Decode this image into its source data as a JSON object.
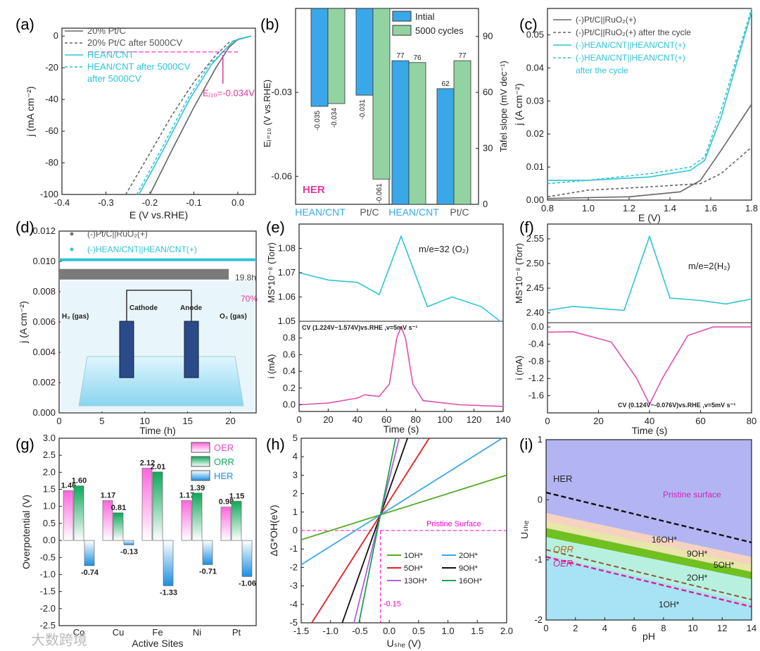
{
  "colors": {
    "cyan": "#2ec4d6",
    "gray": "#666666",
    "pink": "#e0379b",
    "magenta": "#ff00cc",
    "blue": "#3aa8e8",
    "green": "#8fd4a0",
    "olive": "#5a7a20"
  },
  "panels": {
    "a": {
      "label": "(a)",
      "xlabel": "E (V vs.RHE)",
      "ylabel": "j (mA cm⁻²)",
      "xticks": [
        "-0.4",
        "-0.3",
        "-0.2",
        "-0.1",
        "0.0"
      ],
      "yticks": [
        "0",
        "-20",
        "-40",
        "-60",
        "-80",
        "-100"
      ],
      "legend": [
        "20% Pt/C",
        "20% Pt/C after 5000CV",
        "HEAN/CNT",
        "HEAN/CNT after 5000CV"
      ],
      "annotation": "Eⱼ₁₀=-0.034V"
    },
    "b": {
      "label": "(b)",
      "ylabel_left": "Eⱼ₌₁₀ (V vs.RHE)",
      "ylabel_right": "Tafel slope (mV dec⁻¹)",
      "yticks_left": [
        "-0.03",
        "-0.06"
      ],
      "yticks_right": [
        "90",
        "60",
        "30",
        "0"
      ],
      "legend": [
        "Intial",
        "5000 cycles"
      ],
      "tag": "HER",
      "xcats": [
        "HEAN/CNT",
        "Pt/C",
        "HEAN/CNT",
        "Pt/C"
      ],
      "labels_left": [
        "-0.035",
        "-0.034",
        "-0.031",
        "-0.061"
      ],
      "labels_right": [
        "77",
        "76",
        "62",
        "77"
      ]
    },
    "c": {
      "label": "(c)",
      "xlabel": "E (V)",
      "ylabel": "j (A cm⁻²)",
      "xticks": [
        "0.8",
        "1.0",
        "1.2",
        "1.4",
        "1.6",
        "1.8"
      ],
      "yticks": [
        "0.00",
        "0.01",
        "0.02",
        "0.03",
        "0.04",
        "0.05"
      ],
      "legend": [
        "(-)Pt/C||RuO₂(+)",
        "(-)Pt/C||RuO₂(+) after the cycle",
        "(-)HEAN/CNT||HEAN/CNT(+)",
        "(-)HEAN/CNT||HEAN/CNT(+)",
        "after the cycle"
      ]
    },
    "d": {
      "label": "(d)",
      "xlabel": "Time (h)",
      "ylabel": "j (A cm⁻²)",
      "xticks": [
        "0",
        "5",
        "10",
        "15",
        "20"
      ],
      "yticks": [
        "0.000",
        "0.002",
        "0.004",
        "0.006",
        "0.008",
        "0.010",
        "0.012"
      ],
      "legend": [
        "(-)Pt/C||RuO₂(+)",
        "(-)HEAN/CNT||HEAN/CNT(+)"
      ],
      "ann1": "19.8h",
      "ann2": "70%",
      "cathode": "Cathode",
      "anode": "Anode",
      "h2": "H₂ (gas)",
      "o2": "O₂ (gas)"
    },
    "e": {
      "label": "(e)",
      "xlabel": "Time (s)",
      "ylabel_top": "MS*10⁻⁸ (Torr)",
      "ylabel_bottom": "i (mA)",
      "xticks": [
        "0",
        "20",
        "40",
        "60",
        "80",
        "100",
        "120",
        "140"
      ],
      "yticks_top": [
        "1.08",
        "1.07",
        "1.06",
        "1.05"
      ],
      "yticks_bottom": [
        "0.8",
        "0.6",
        "0.4",
        "0.2",
        "0.0"
      ],
      "me": "m/e=32 (O₂)",
      "cv": "CV (1.224V~1.574V)vs.RHE ,v=5mV s⁻¹"
    },
    "f": {
      "label": "(f)",
      "xlabel": "Time (s)",
      "ylabel_top": "MS*10⁻⁸ (Torr)",
      "ylabel_bottom": "i (mA)",
      "xticks": [
        "0",
        "20",
        "40",
        "60",
        "80"
      ],
      "yticks_top": [
        "2.55",
        "2.50",
        "2.45",
        "2.40"
      ],
      "yticks_bottom": [
        "0.0",
        "-0.4",
        "-0.8",
        "-1.2",
        "-1.6"
      ],
      "me": "m/e=2(H₂)",
      "cv": "CV (0.124V~-0.076V)vs.RHE ,v=5mV s⁻¹"
    },
    "g": {
      "label": "(g)",
      "xlabel": "Active Sites",
      "ylabel": "Overpotential (V)",
      "yticks": [
        "3.0",
        "2.5",
        "2.0",
        "1.5",
        "1.0",
        "0.5",
        "0.0",
        "-0.5",
        "-1.0",
        "-1.5",
        "-2.0",
        "-2.5"
      ],
      "legend": [
        "OER",
        "ORR",
        "HER"
      ],
      "xcats": [
        "Co",
        "Cu",
        "Fe",
        "Ni",
        "Pt"
      ]
    },
    "h": {
      "label": "(h)",
      "xlabel": "Uₛₕₑ (V)",
      "ylabel": "ΔG*OH(eV)",
      "xticks": [
        "-1.5",
        "-1.0",
        "-0.5",
        "0.0",
        "0.5",
        "1.0",
        "1.5",
        "2.0"
      ],
      "yticks": [
        "5",
        "4",
        "3",
        "2",
        "1",
        "0",
        "-1",
        "-2",
        "-3",
        "-4",
        "-5"
      ],
      "pristine": "Pristine Surface",
      "val": "-0.15",
      "legend": [
        "1OH*",
        "2OH*",
        "5OH*",
        "9OH*",
        "13OH*",
        "16OH*"
      ]
    },
    "i": {
      "label": "(i)",
      "xlabel": "pH",
      "ylabel": "Uₛₕₑ",
      "xticks": [
        "0",
        "2",
        "4",
        "6",
        "8",
        "10",
        "12",
        "14"
      ],
      "yticks": [
        "1",
        "0",
        "-1",
        "-2"
      ],
      "her": "HER",
      "orr": "ORR",
      "oer": "OER",
      "pristine": "Pristine surface",
      "regions": [
        "16OH*",
        "9OH*",
        "5OH*",
        "2OH*",
        "1OH*"
      ]
    },
    "watermark": "大数跨境"
  },
  "chart_data": [
    {
      "type": "line",
      "panel": "a",
      "xlim": [
        -0.4,
        0.04
      ],
      "ylim": [
        -100,
        5
      ],
      "series": [
        {
          "name": "20% Pt/C",
          "style": "solid",
          "color": "#666666",
          "points": [
            [
              -0.2,
              -100
            ],
            [
              -0.15,
              -72
            ],
            [
              -0.1,
              -45
            ],
            [
              -0.05,
              -20
            ],
            [
              -0.02,
              -7
            ],
            [
              0.0,
              -2
            ],
            [
              0.03,
              0
            ]
          ]
        },
        {
          "name": "20% Pt/C after 5000CV",
          "style": "dashed",
          "color": "#666666",
          "points": [
            [
              -0.255,
              -100
            ],
            [
              -0.2,
              -74
            ],
            [
              -0.15,
              -50
            ],
            [
              -0.1,
              -29
            ],
            [
              -0.05,
              -12
            ],
            [
              -0.02,
              -4
            ],
            [
              0.03,
              0
            ]
          ]
        },
        {
          "name": "HEAN/CNT",
          "style": "solid",
          "color": "#2ec4d6",
          "points": [
            [
              -0.225,
              -100
            ],
            [
              -0.17,
              -72
            ],
            [
              -0.11,
              -40
            ],
            [
              -0.06,
              -18
            ],
            [
              -0.034,
              -10
            ],
            [
              -0.01,
              -3
            ],
            [
              0.03,
              0
            ]
          ]
        },
        {
          "name": "HEAN/CNT after 5000CV",
          "style": "dashed",
          "color": "#2ec4d6",
          "points": [
            [
              -0.23,
              -100
            ],
            [
              -0.175,
              -72
            ],
            [
              -0.115,
              -40
            ],
            [
              -0.065,
              -18
            ],
            [
              -0.034,
              -10
            ],
            [
              -0.01,
              -3
            ],
            [
              0.03,
              0
            ]
          ]
        }
      ]
    },
    {
      "type": "bar",
      "panel": "b",
      "categories": [
        "HEAN/CNT",
        "Pt/C",
        "HEAN/CNT",
        "Pt/C"
      ],
      "series": [
        {
          "name": "Intial",
          "values": [
            -0.035,
            -0.031,
            77,
            62
          ]
        },
        {
          "name": "5000 cycles",
          "values": [
            -0.034,
            -0.061,
            76,
            77
          ]
        }
      ],
      "ylim_left": [
        -0.07,
        0
      ],
      "ylim_right": [
        0,
        105
      ]
    },
    {
      "type": "line",
      "panel": "c",
      "xlim": [
        0.8,
        1.8
      ],
      "ylim": [
        0,
        0.058
      ],
      "series": [
        {
          "name": "(-)Pt/C||RuO2(+)",
          "style": "solid",
          "color": "#666666",
          "points": [
            [
              0.8,
              0.0005
            ],
            [
              1.2,
              0.001
            ],
            [
              1.45,
              0.0025
            ],
            [
              1.55,
              0.006
            ],
            [
              1.65,
              0.015
            ],
            [
              1.8,
              0.029
            ]
          ]
        },
        {
          "name": "(-)Pt/C||RuO2(+) after the cycle",
          "style": "dashed",
          "color": "#666666",
          "points": [
            [
              0.8,
              0.001
            ],
            [
              1.0,
              0.003
            ],
            [
              1.3,
              0.004
            ],
            [
              1.55,
              0.005
            ],
            [
              1.65,
              0.008
            ],
            [
              1.8,
              0.016
            ]
          ]
        },
        {
          "name": "(-)HEAN/CNT||HEAN/CNT(+)",
          "style": "solid",
          "color": "#2ec4d6",
          "points": [
            [
              0.8,
              0.006
            ],
            [
              1.0,
              0.006
            ],
            [
              1.3,
              0.007
            ],
            [
              1.5,
              0.009
            ],
            [
              1.57,
              0.012
            ],
            [
              1.65,
              0.025
            ],
            [
              1.8,
              0.057
            ]
          ]
        },
        {
          "name": "(-)HEAN/CNT||HEAN/CNT(+) after the cycle",
          "style": "dashed",
          "color": "#2ec4d6",
          "points": [
            [
              0.8,
              0.005
            ],
            [
              1.0,
              0.006
            ],
            [
              1.3,
              0.008
            ],
            [
              1.5,
              0.01
            ],
            [
              1.57,
              0.013
            ],
            [
              1.65,
              0.027
            ],
            [
              1.8,
              0.058
            ]
          ]
        }
      ]
    },
    {
      "type": "line",
      "panel": "d",
      "xlim": [
        0,
        23
      ],
      "ylim": [
        0,
        0.012
      ],
      "series": [
        {
          "name": "(-)Pt/C||RuO2(+)",
          "color": "#777777",
          "points": [
            [
              0,
              0.0093
            ],
            [
              5,
              0.0092
            ],
            [
              10,
              0.0091
            ],
            [
              15,
              0.009
            ],
            [
              19.8,
              0.0089
            ],
            [
              20.3,
              0.0075
            ],
            [
              21,
              0.0072
            ]
          ]
        },
        {
          "name": "(-)HEAN/CNT||HEAN/CNT(+)",
          "color": "#2ec4d6",
          "points": [
            [
              0,
              0.0101
            ],
            [
              23,
              0.0101
            ]
          ]
        }
      ]
    },
    {
      "type": "line",
      "panel": "e",
      "xlim": [
        0,
        140
      ],
      "top": {
        "ylim": [
          1.05,
          1.09
        ],
        "points": [
          [
            0,
            1.07
          ],
          [
            20,
            1.067
          ],
          [
            40,
            1.066
          ],
          [
            55,
            1.061
          ],
          [
            70,
            1.085
          ],
          [
            88,
            1.056
          ],
          [
            105,
            1.06
          ],
          [
            125,
            1.056
          ],
          [
            138,
            1.05
          ]
        ]
      },
      "bottom": {
        "ylim": [
          -0.08,
          1.0
        ],
        "points": [
          [
            0,
            0
          ],
          [
            20,
            0.02
          ],
          [
            40,
            0.08
          ],
          [
            45,
            0.12
          ],
          [
            55,
            0.1
          ],
          [
            62,
            0.25
          ],
          [
            67,
            0.8
          ],
          [
            70,
            0.93
          ],
          [
            73,
            0.8
          ],
          [
            78,
            0.25
          ],
          [
            85,
            0.05
          ],
          [
            110,
            0
          ],
          [
            140,
            -0.02
          ]
        ]
      }
    },
    {
      "type": "line",
      "panel": "f",
      "xlim": [
        0,
        80
      ],
      "top": {
        "ylim": [
          2.38,
          2.58
        ],
        "points": [
          [
            0,
            2.405
          ],
          [
            10,
            2.413
          ],
          [
            30,
            2.405
          ],
          [
            40,
            2.555
          ],
          [
            48,
            2.43
          ],
          [
            60,
            2.425
          ],
          [
            70,
            2.418
          ],
          [
            80,
            2.428
          ]
        ]
      },
      "bottom": {
        "ylim": [
          -2.0,
          0.1
        ],
        "points": [
          [
            0,
            -0.12
          ],
          [
            10,
            -0.11
          ],
          [
            25,
            -0.35
          ],
          [
            35,
            -1.2
          ],
          [
            40,
            -1.8
          ],
          [
            45,
            -1.2
          ],
          [
            55,
            -0.2
          ],
          [
            65,
            0.0
          ],
          [
            80,
            0.0
          ]
        ]
      }
    },
    {
      "type": "bar",
      "panel": "g",
      "categories": [
        "Co",
        "Cu",
        "Fe",
        "Ni",
        "Pt"
      ],
      "ylim": [
        -2.5,
        3.0
      ],
      "series": [
        {
          "name": "OER",
          "values": [
            1.46,
            1.17,
            2.12,
            1.17,
            0.98
          ]
        },
        {
          "name": "ORR",
          "values": [
            1.6,
            0.81,
            2.01,
            1.39,
            1.15
          ]
        },
        {
          "name": "HER",
          "values": [
            -0.74,
            -0.13,
            -1.33,
            -0.71,
            -1.06
          ]
        }
      ]
    },
    {
      "type": "line",
      "panel": "h",
      "xlim": [
        -1.5,
        2.0
      ],
      "ylim": [
        -5,
        5
      ],
      "pristine_y": 0,
      "vline_x": -0.15,
      "series": [
        {
          "name": "1OH*",
          "slope": 1
        },
        {
          "name": "2OH*",
          "slope": 2
        },
        {
          "name": "5OH*",
          "slope": 5
        },
        {
          "name": "9OH*",
          "slope": 9
        },
        {
          "name": "13OH*",
          "slope": 13
        },
        {
          "name": "16OH*",
          "slope": 16
        }
      ],
      "pivot": [
        -0.15,
        0.85
      ]
    },
    {
      "type": "area",
      "panel": "i",
      "xlim": [
        0,
        14
      ],
      "ylim": [
        -2,
        1
      ],
      "lines": {
        "HER": [
          0.12,
          -0.71
        ],
        "ORR": [
          -0.83,
          -1.66
        ],
        "OER": [
          -0.95,
          -1.78
        ],
        "b16": [
          -0.22,
          -0.95
        ],
        "b9": [
          -0.35,
          -1.08
        ],
        "b5": [
          -0.47,
          -1.2
        ],
        "b5low": [
          -0.62,
          -1.32
        ],
        "b2": [
          -0.92,
          -1.72
        ]
      }
    }
  ]
}
